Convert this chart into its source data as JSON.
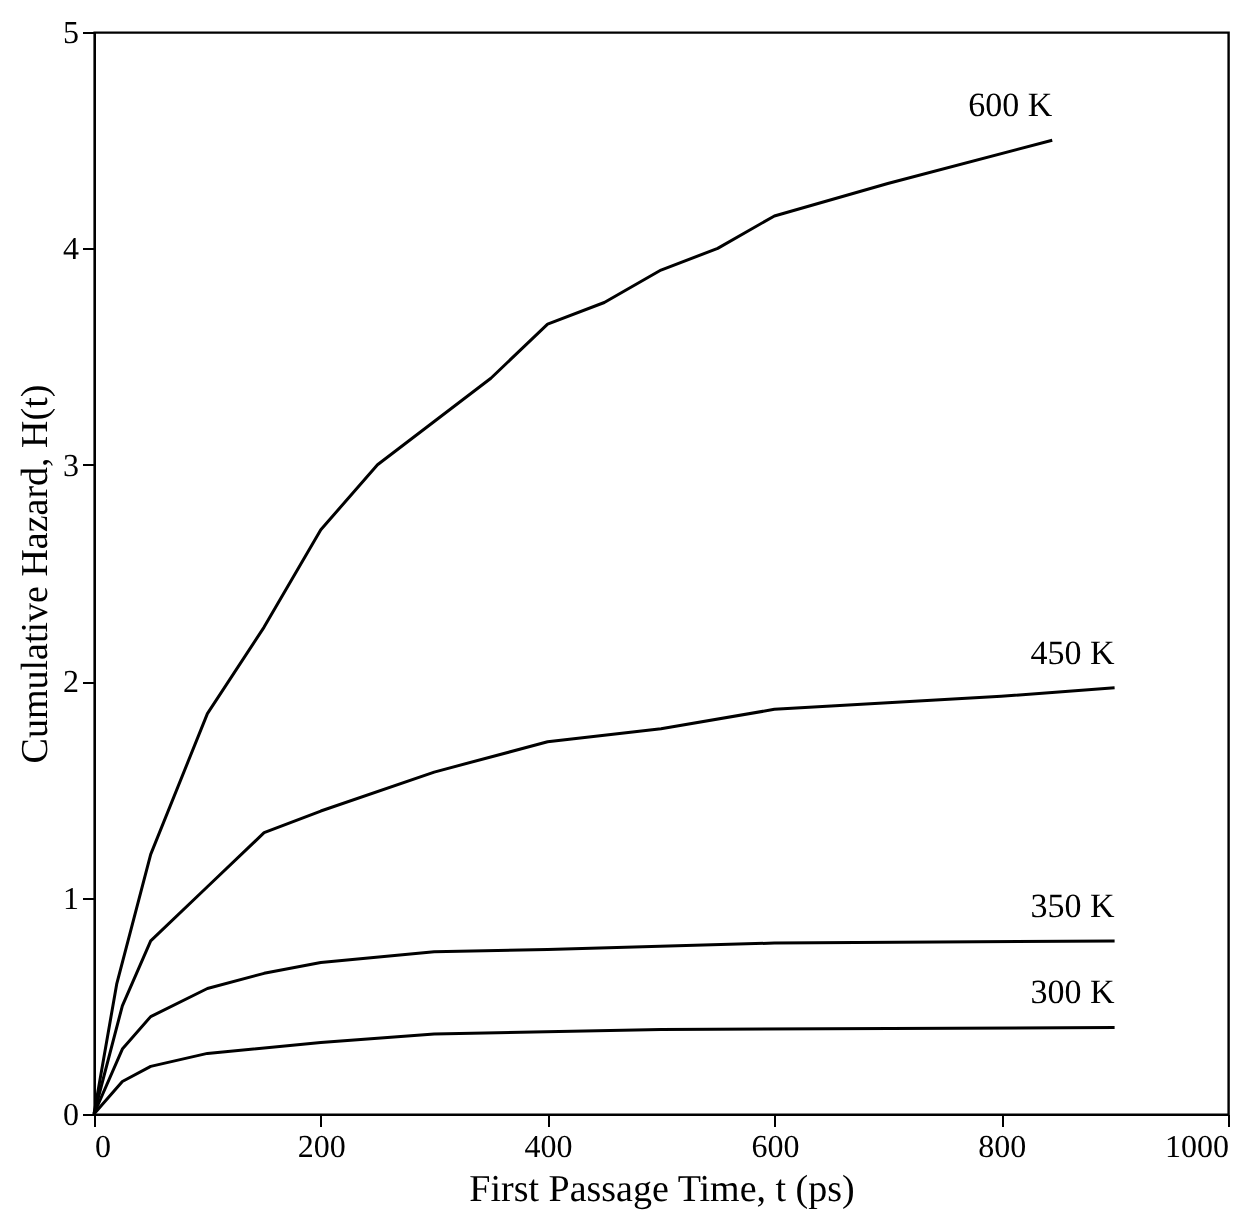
{
  "chart_data": {
    "type": "line",
    "xlabel": "First Passage Time, t (ps)",
    "ylabel": "Cumulative Hazard, H(t)",
    "xlim": [
      0,
      1000
    ],
    "xticks": [
      0,
      200,
      400,
      600,
      800,
      1000
    ],
    "ylim": [
      0,
      5
    ],
    "yticks": [
      0,
      1,
      2,
      3,
      4,
      5
    ],
    "grid": false,
    "marker": "none",
    "line_style": "solid",
    "series": [
      {
        "name": "600 K",
        "color": "#000000",
        "x": [
          0,
          20,
          50,
          100,
          150,
          200,
          250,
          300,
          350,
          400,
          450,
          500,
          550,
          600,
          700,
          845
        ],
        "values": [
          0,
          0.6,
          1.2,
          1.85,
          2.25,
          2.7,
          3.0,
          3.2,
          3.4,
          3.65,
          3.75,
          3.9,
          4.0,
          4.15,
          4.3,
          4.5
        ]
      },
      {
        "name": "450 K",
        "color": "#000000",
        "x": [
          0,
          25,
          50,
          100,
          150,
          200,
          300,
          400,
          500,
          600,
          700,
          800,
          900
        ],
        "values": [
          0,
          0.5,
          0.8,
          1.05,
          1.3,
          1.4,
          1.58,
          1.72,
          1.78,
          1.87,
          1.9,
          1.93,
          1.97
        ]
      },
      {
        "name": "350 K",
        "color": "#000000",
        "x": [
          0,
          25,
          50,
          100,
          150,
          200,
          300,
          400,
          600,
          900
        ],
        "values": [
          0,
          0.3,
          0.45,
          0.58,
          0.65,
          0.7,
          0.75,
          0.76,
          0.79,
          0.8
        ]
      },
      {
        "name": "300 K",
        "color": "#000000",
        "x": [
          0,
          25,
          50,
          100,
          200,
          300,
          500,
          900
        ],
        "values": [
          0,
          0.15,
          0.22,
          0.28,
          0.33,
          0.37,
          0.39,
          0.4
        ]
      }
    ]
  }
}
